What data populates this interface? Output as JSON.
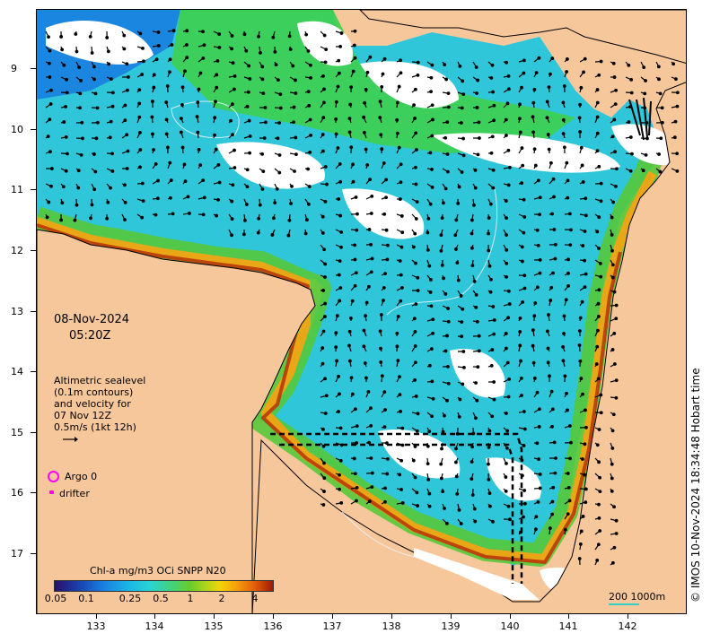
{
  "map": {
    "date": "08-Nov-2024",
    "time": "05:20Z",
    "altimetry_lines": [
      "Altimetric sealevel",
      "(0.1m contours)",
      "and velocity for",
      "07 Nov 12Z",
      "0.5m/s (1kt 12h)"
    ],
    "argo_label": "Argo 0",
    "drifter_label": "drifter",
    "colorbar_title": "Chl-a mg/m3 OCi SNPP N20",
    "colorbar_ticks": [
      "0.05",
      "0.1",
      "0.25",
      "0.5",
      "1",
      "2",
      "4"
    ],
    "scale_label": "200  1000m",
    "copyright": "© IMOS 10-Nov-2024 18:34:48 Hobart time",
    "lat_ticks": [
      "9",
      "10",
      "11",
      "12",
      "13",
      "14",
      "15",
      "16",
      "17"
    ],
    "lon_ticks": [
      "133",
      "134",
      "135",
      "136",
      "137",
      "138",
      "139",
      "140",
      "141",
      "142"
    ],
    "colors": {
      "land": "#f7c79c",
      "cloud": "#ffffff",
      "argo": "#ff00ff",
      "drifter": "#ff00ff",
      "scale_bar": "#2fd0c6"
    }
  }
}
